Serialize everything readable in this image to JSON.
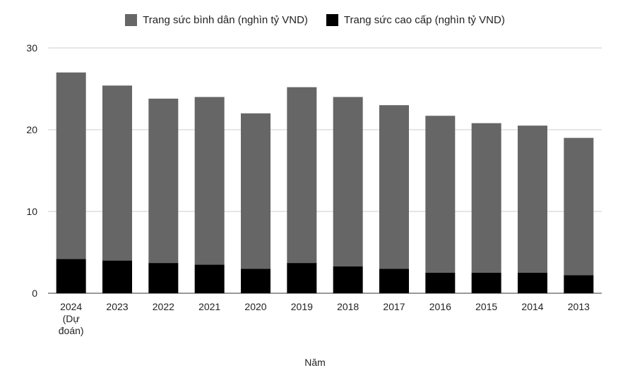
{
  "chart_data": {
    "type": "bar",
    "stacked": true,
    "categories": [
      "2024 (Dự đoán)",
      "2023",
      "2022",
      "2021",
      "2020",
      "2019",
      "2018",
      "2017",
      "2016",
      "2015",
      "2014",
      "2013"
    ],
    "category_lines": [
      [
        "2024",
        "(Dự",
        "đoán)"
      ],
      [
        "2023"
      ],
      [
        "2022"
      ],
      [
        "2021"
      ],
      [
        "2020"
      ],
      [
        "2019"
      ],
      [
        "2018"
      ],
      [
        "2017"
      ],
      [
        "2016"
      ],
      [
        "2015"
      ],
      [
        "2014"
      ],
      [
        "2013"
      ]
    ],
    "series": [
      {
        "name": "Trang sức cao cấp (nghìn tỷ VND)",
        "color": "#000000",
        "values": [
          4.2,
          4.0,
          3.7,
          3.5,
          3.0,
          3.7,
          3.3,
          3.0,
          2.5,
          2.5,
          2.5,
          2.2
        ]
      },
      {
        "name": "Trang sức bình dân (nghìn tỷ VND)",
        "color": "#666666",
        "values": [
          22.8,
          21.4,
          20.1,
          20.5,
          19.0,
          21.5,
          20.7,
          20.0,
          19.2,
          18.3,
          18.0,
          16.8
        ]
      }
    ],
    "legend_order": [
      1,
      0
    ],
    "legend_position": "top-center",
    "xlabel": "Năm",
    "ylabel": "",
    "ylim": [
      0,
      30
    ],
    "yticks": [
      0,
      10,
      20,
      30
    ],
    "grid": true
  }
}
